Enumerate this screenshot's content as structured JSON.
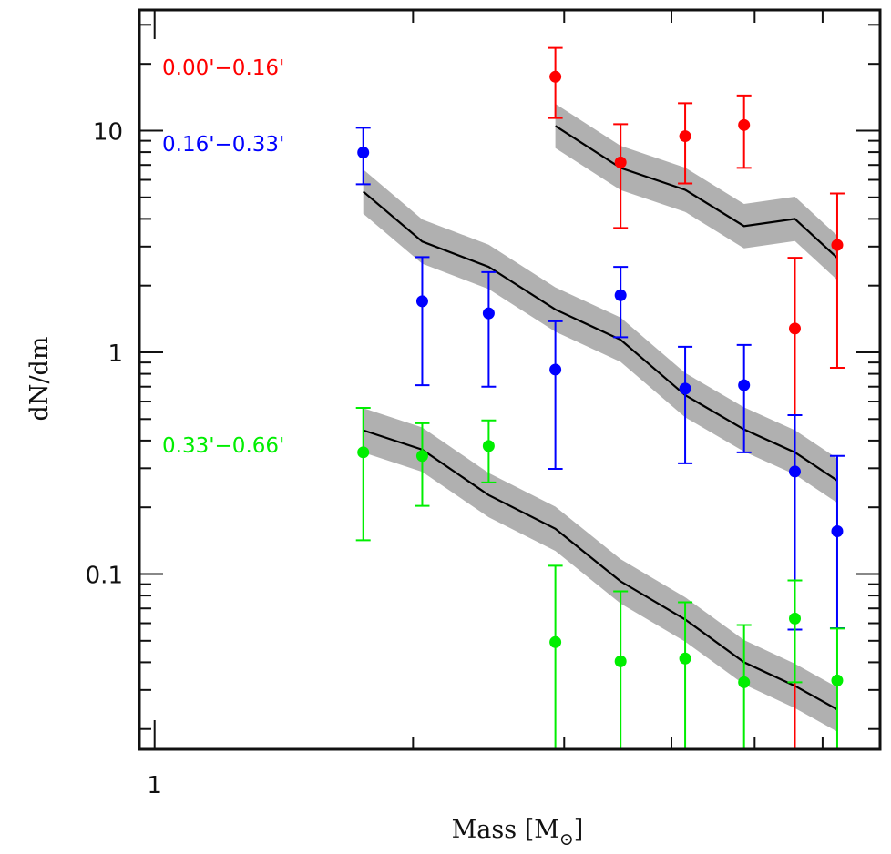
{
  "chart_data": {
    "type": "scatter",
    "title": "",
    "xlabel": "Mass [M⊙]",
    "xlabel_main": "Mass [M",
    "xlabel_sub": "⊙",
    "xlabel_close": "]",
    "ylabel": "dN/dm",
    "xscale": "log",
    "yscale": "log",
    "xlim": [
      0.96,
      7.0
    ],
    "ylim": [
      0.0162,
      35
    ],
    "x_ticklabels": [
      {
        "value": 1,
        "label": "1"
      }
    ],
    "x_minor_ticks": [
      2,
      3,
      4,
      5,
      6,
      7
    ],
    "y_ticklabels": [
      {
        "value": 10,
        "label": "10"
      },
      {
        "value": 1,
        "label": "1"
      },
      {
        "value": 0.1,
        "label": "0.1"
      }
    ],
    "grid": false,
    "legend_position": "top-left",
    "series": [
      {
        "name": "0.00'−0.16'",
        "color": "#ff0000",
        "points": [
          {
            "x": 2.93,
            "y": 17.5,
            "ylo": 11.4,
            "yhi": 23.6
          },
          {
            "x": 3.49,
            "y": 7.19,
            "ylo": 3.64,
            "yhi": 10.7
          },
          {
            "x": 4.15,
            "y": 9.44,
            "ylo": 5.78,
            "yhi": 13.3
          },
          {
            "x": 4.86,
            "y": 10.6,
            "ylo": 6.79,
            "yhi": 14.4
          },
          {
            "x": 5.57,
            "y": 1.28,
            "ylo": 0.001,
            "yhi": 2.67
          },
          {
            "x": 6.24,
            "y": 3.05,
            "ylo": 0.851,
            "yhi": 5.21
          }
        ],
        "model": {
          "x": [
            2.93,
            3.49,
            4.15,
            4.86,
            5.57,
            6.24
          ],
          "y": [
            10.5,
            6.79,
            5.41,
            3.71,
            4.0,
            2.67
          ],
          "band_dex": 0.1
        }
      },
      {
        "name": "0.16'−0.33'",
        "color": "#0000ff",
        "points": [
          {
            "x": 1.75,
            "y": 7.97,
            "ylo": 5.73,
            "yhi": 10.3
          },
          {
            "x": 2.05,
            "y": 1.7,
            "ylo": 0.711,
            "yhi": 2.69
          },
          {
            "x": 2.45,
            "y": 1.5,
            "ylo": 0.7,
            "yhi": 2.3
          },
          {
            "x": 2.93,
            "y": 0.836,
            "ylo": 0.298,
            "yhi": 1.38
          },
          {
            "x": 3.49,
            "y": 1.81,
            "ylo": 1.17,
            "yhi": 2.43
          },
          {
            "x": 4.15,
            "y": 0.686,
            "ylo": 0.316,
            "yhi": 1.06
          },
          {
            "x": 4.86,
            "y": 0.711,
            "ylo": 0.354,
            "yhi": 1.08
          },
          {
            "x": 5.57,
            "y": 0.29,
            "ylo": 0.0562,
            "yhi": 0.521
          },
          {
            "x": 6.24,
            "y": 0.156,
            "ylo": 0.057,
            "yhi": 0.341
          }
        ],
        "model": {
          "x": [
            1.75,
            2.05,
            2.45,
            2.93,
            3.49,
            4.15,
            4.86,
            5.57,
            6.24
          ],
          "y": [
            5.31,
            3.16,
            2.43,
            1.56,
            1.14,
            0.641,
            0.449,
            0.354,
            0.264
          ],
          "band_dex": 0.1
        }
      },
      {
        "name": "0.33'−0.66'",
        "color": "#00ee00",
        "points": [
          {
            "x": 1.75,
            "y": 0.354,
            "ylo": 0.142,
            "yhi": 0.562
          },
          {
            "x": 2.05,
            "y": 0.341,
            "ylo": 0.203,
            "yhi": 0.479
          },
          {
            "x": 2.45,
            "y": 0.378,
            "ylo": 0.259,
            "yhi": 0.493
          },
          {
            "x": 2.93,
            "y": 0.0493,
            "ylo": 0.001,
            "yhi": 0.109
          },
          {
            "x": 3.49,
            "y": 0.0404,
            "ylo": 0.001,
            "yhi": 0.0836
          },
          {
            "x": 4.15,
            "y": 0.0416,
            "ylo": 0.001,
            "yhi": 0.0746
          },
          {
            "x": 4.86,
            "y": 0.0325,
            "ylo": 0.001,
            "yhi": 0.0589
          },
          {
            "x": 5.57,
            "y": 0.063,
            "ylo": 0.0325,
            "yhi": 0.0936
          },
          {
            "x": 6.24,
            "y": 0.0331,
            "ylo": 0.001,
            "yhi": 0.0568
          }
        ],
        "model": {
          "x": [
            1.75,
            2.05,
            2.45,
            2.93,
            3.49,
            4.15,
            4.86,
            5.57,
            6.24
          ],
          "y": [
            0.445,
            0.364,
            0.227,
            0.16,
            0.0927,
            0.0624,
            0.04,
            0.0313,
            0.0245
          ],
          "band_dex": 0.1
        }
      }
    ],
    "legend": [
      {
        "label": "0.00'−0.16'",
        "color": "#ff0000"
      },
      {
        "label": "0.16'−0.33'",
        "color": "#0000ff"
      },
      {
        "label": "0.33'−0.66'",
        "color": "#00ee00"
      }
    ],
    "model_line_color": "#000000",
    "band_color": "#b0b0b0"
  }
}
